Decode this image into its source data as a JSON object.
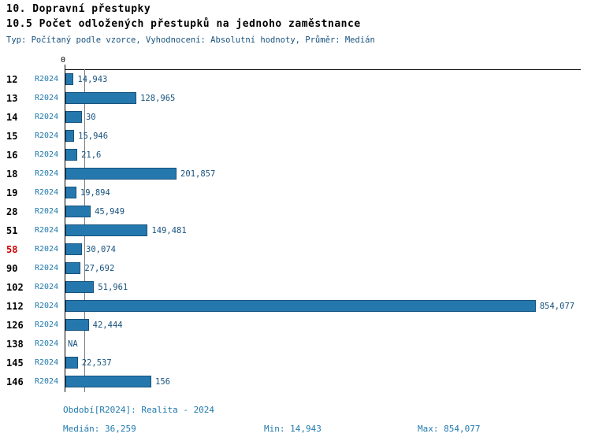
{
  "header": {
    "title": "10. Dopravní přestupky",
    "subtitle": "10.5 Počet odložených přestupků na jednoho zaměstnance",
    "meta": "Typ: Počítaný podle vzorce, Vyhodnocení: Absolutní hodnoty, Průměr: Medián"
  },
  "chart_data": {
    "type": "bar",
    "orientation": "horizontal",
    "title": "10.5 Počet odložených přestupků na jednoho zaměstnance",
    "series_label": "R2024",
    "x_axis": {
      "zero_label": "0",
      "xlim": [
        0,
        933
      ],
      "grid": false
    },
    "rows": [
      {
        "id": "12",
        "value": 14.943,
        "label": "14,943"
      },
      {
        "id": "13",
        "value": 128.965,
        "label": "128,965"
      },
      {
        "id": "14",
        "value": 30,
        "label": "30"
      },
      {
        "id": "15",
        "value": 15.946,
        "label": "15,946"
      },
      {
        "id": "16",
        "value": 21.6,
        "label": "21,6"
      },
      {
        "id": "18",
        "value": 201.857,
        "label": "201,857"
      },
      {
        "id": "19",
        "value": 19.894,
        "label": "19,894"
      },
      {
        "id": "28",
        "value": 45.949,
        "label": "45,949"
      },
      {
        "id": "51",
        "value": 149.481,
        "label": "149,481"
      },
      {
        "id": "58",
        "value": 30.074,
        "label": "30,074"
      },
      {
        "id": "90",
        "value": 27.692,
        "label": "27,692"
      },
      {
        "id": "102",
        "value": 51.961,
        "label": "51,961"
      },
      {
        "id": "112",
        "value": 854.077,
        "label": "854,077"
      },
      {
        "id": "126",
        "value": 42.444,
        "label": "42,444"
      },
      {
        "id": "138",
        "value": null,
        "label": "NA"
      },
      {
        "id": "145",
        "value": 22.537,
        "label": "22,537"
      },
      {
        "id": "146",
        "value": 156,
        "label": "156"
      }
    ],
    "highlighted_row_id": "58",
    "median_value": 36.259,
    "colors": {
      "bar": "#2478ad",
      "bar_border": "#17527e",
      "highlight_id_text": "#cc0000",
      "value_text": "#17527e",
      "series_text": "#2079ad"
    }
  },
  "footer": {
    "period": "Období[R2024]: Realita - 2024",
    "median": "Medián: 36,259",
    "min": "Min: 14,943",
    "max": "Max: 854,077"
  }
}
